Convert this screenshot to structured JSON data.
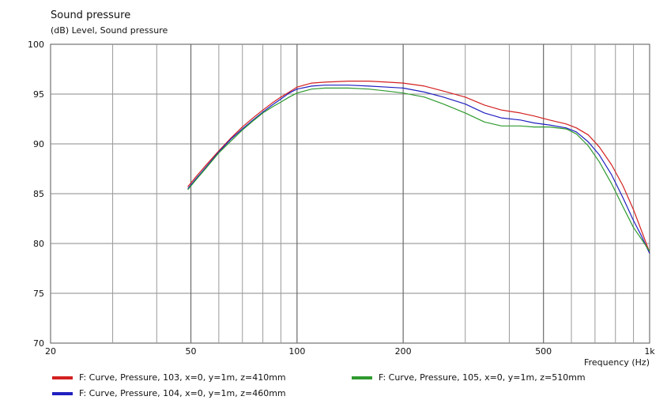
{
  "chart_data": {
    "type": "line",
    "title": "Sound pressure",
    "ylabel": "(dB)  Level, Sound pressure",
    "xlabel": "Frequency  (Hz)",
    "x_scale": "log",
    "xlim": [
      20,
      1000
    ],
    "ylim": [
      70,
      100
    ],
    "y_ticks": [
      70,
      75,
      80,
      85,
      90,
      95,
      100
    ],
    "x_tick_labels": [
      {
        "value": 20,
        "label": "20"
      },
      {
        "value": 50,
        "label": "50"
      },
      {
        "value": 100,
        "label": "100"
      },
      {
        "value": 200,
        "label": "200"
      },
      {
        "value": 500,
        "label": "500"
      },
      {
        "value": 1000,
        "label": "1k"
      }
    ],
    "x_minor_grid": [
      30,
      40,
      60,
      70,
      80,
      90,
      300,
      400,
      600,
      700,
      800,
      900
    ],
    "grid": true,
    "legend_position": "bottom",
    "series": [
      {
        "name": "F: Curve, Pressure, 103, x=0, y=1m, z=410mm",
        "color": "#d42020",
        "points": [
          [
            49,
            85.7
          ],
          [
            52,
            86.8
          ],
          [
            55,
            87.8
          ],
          [
            60,
            89.3
          ],
          [
            65,
            90.6
          ],
          [
            70,
            91.7
          ],
          [
            75,
            92.6
          ],
          [
            80,
            93.4
          ],
          [
            85,
            94.1
          ],
          [
            90,
            94.7
          ],
          [
            95,
            95.2
          ],
          [
            100,
            95.7
          ],
          [
            110,
            96.1
          ],
          [
            120,
            96.2
          ],
          [
            140,
            96.3
          ],
          [
            160,
            96.3
          ],
          [
            180,
            96.2
          ],
          [
            200,
            96.1
          ],
          [
            230,
            95.8
          ],
          [
            260,
            95.3
          ],
          [
            300,
            94.7
          ],
          [
            340,
            93.9
          ],
          [
            380,
            93.4
          ],
          [
            430,
            93.1
          ],
          [
            470,
            92.8
          ],
          [
            520,
            92.4
          ],
          [
            580,
            92.0
          ],
          [
            620,
            91.6
          ],
          [
            670,
            90.9
          ],
          [
            720,
            89.7
          ],
          [
            780,
            87.9
          ],
          [
            840,
            85.8
          ],
          [
            900,
            83.4
          ],
          [
            950,
            81.2
          ],
          [
            1000,
            79.1
          ]
        ]
      },
      {
        "name": "F: Curve, Pressure, 104, x=0, y=1m, z=460mm",
        "color": "#2020c0",
        "points": [
          [
            49,
            85.5
          ],
          [
            52,
            86.6
          ],
          [
            55,
            87.6
          ],
          [
            60,
            89.2
          ],
          [
            65,
            90.5
          ],
          [
            70,
            91.5
          ],
          [
            75,
            92.4
          ],
          [
            80,
            93.2
          ],
          [
            85,
            93.9
          ],
          [
            90,
            94.5
          ],
          [
            95,
            95.1
          ],
          [
            100,
            95.5
          ],
          [
            110,
            95.8
          ],
          [
            120,
            95.9
          ],
          [
            140,
            95.9
          ],
          [
            160,
            95.8
          ],
          [
            180,
            95.7
          ],
          [
            200,
            95.6
          ],
          [
            230,
            95.2
          ],
          [
            260,
            94.7
          ],
          [
            300,
            94.0
          ],
          [
            340,
            93.1
          ],
          [
            380,
            92.6
          ],
          [
            430,
            92.4
          ],
          [
            470,
            92.1
          ],
          [
            520,
            91.9
          ],
          [
            580,
            91.6
          ],
          [
            620,
            91.2
          ],
          [
            670,
            90.2
          ],
          [
            720,
            88.9
          ],
          [
            780,
            86.9
          ],
          [
            840,
            84.6
          ],
          [
            900,
            82.3
          ],
          [
            950,
            80.7
          ],
          [
            1000,
            79.0
          ]
        ]
      },
      {
        "name": "F: Curve, Pressure, 105, x=0, y=1m, z=510mm",
        "color": "#2f9a2f",
        "points": [
          [
            49,
            85.4
          ],
          [
            52,
            86.5
          ],
          [
            55,
            87.5
          ],
          [
            60,
            89.1
          ],
          [
            65,
            90.3
          ],
          [
            70,
            91.4
          ],
          [
            75,
            92.3
          ],
          [
            80,
            93.1
          ],
          [
            85,
            93.7
          ],
          [
            90,
            94.2
          ],
          [
            95,
            94.7
          ],
          [
            100,
            95.1
          ],
          [
            110,
            95.5
          ],
          [
            120,
            95.6
          ],
          [
            140,
            95.6
          ],
          [
            160,
            95.5
          ],
          [
            180,
            95.3
          ],
          [
            200,
            95.1
          ],
          [
            230,
            94.7
          ],
          [
            260,
            94.0
          ],
          [
            300,
            93.1
          ],
          [
            340,
            92.2
          ],
          [
            380,
            91.8
          ],
          [
            430,
            91.8
          ],
          [
            470,
            91.7
          ],
          [
            520,
            91.7
          ],
          [
            580,
            91.5
          ],
          [
            620,
            91.0
          ],
          [
            670,
            89.8
          ],
          [
            720,
            88.2
          ],
          [
            780,
            86.0
          ],
          [
            840,
            83.7
          ],
          [
            900,
            81.6
          ],
          [
            950,
            80.4
          ],
          [
            1000,
            79.2
          ]
        ]
      }
    ]
  }
}
